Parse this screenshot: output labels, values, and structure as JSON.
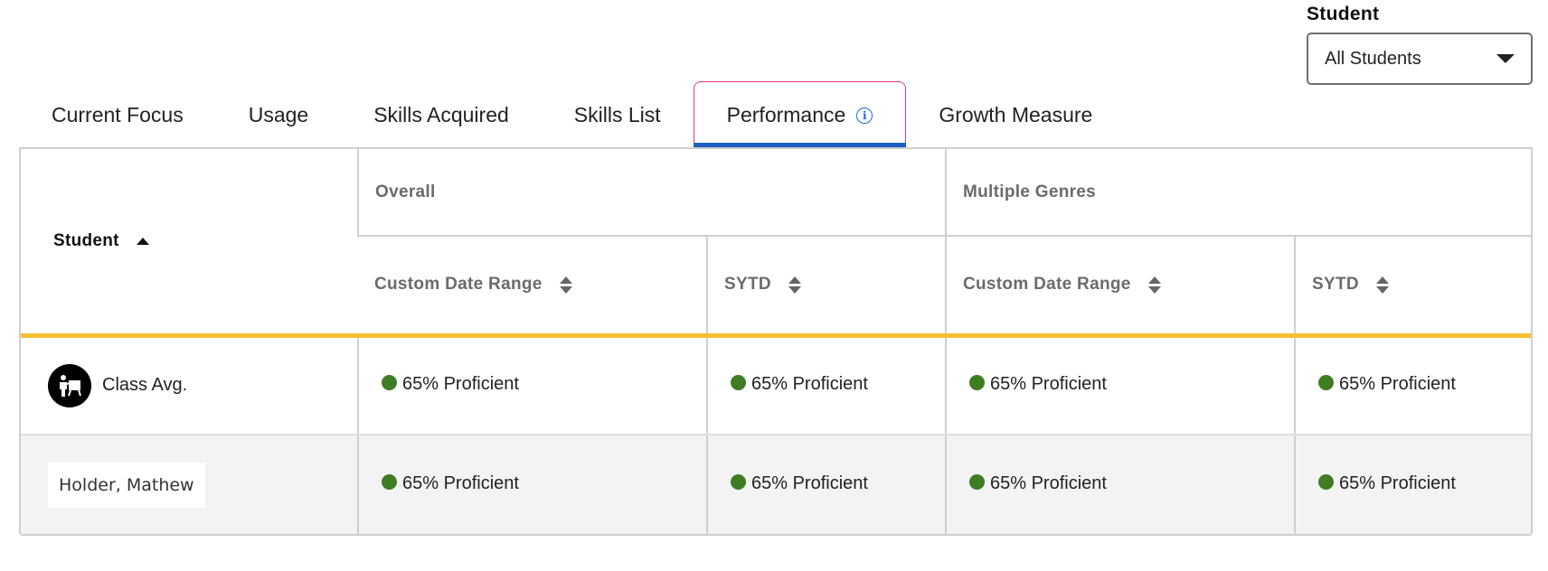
{
  "filter": {
    "label": "Student",
    "selected": "All Students"
  },
  "tabs": [
    {
      "label": "Current Focus",
      "active": false
    },
    {
      "label": "Usage",
      "active": false
    },
    {
      "label": "Skills Acquired",
      "active": false
    },
    {
      "label": "Skills List",
      "active": false
    },
    {
      "label": "Performance",
      "active": true,
      "icon": "info-icon"
    },
    {
      "label": "Growth Measure",
      "active": false
    }
  ],
  "table": {
    "student_header": "Student",
    "groups": [
      "Overall",
      "Multiple Genres"
    ],
    "columns": [
      "Custom Date Range",
      "SYTD",
      "Custom Date Range",
      "SYTD"
    ],
    "rows": [
      {
        "student": "Class Avg.",
        "icon": "class-avg-icon",
        "values": [
          "65% Proficient",
          "65% Proficient",
          "65% Proficient",
          "65% Proficient"
        ]
      },
      {
        "student": "Holder, Mathew",
        "values": [
          "65% Proficient",
          "65% Proficient",
          "65% Proficient",
          "65% Proficient"
        ]
      }
    ],
    "status_color": "#3e7d23",
    "accent_color": "#f5c033",
    "active_tab_color": "#1f5fc4"
  }
}
